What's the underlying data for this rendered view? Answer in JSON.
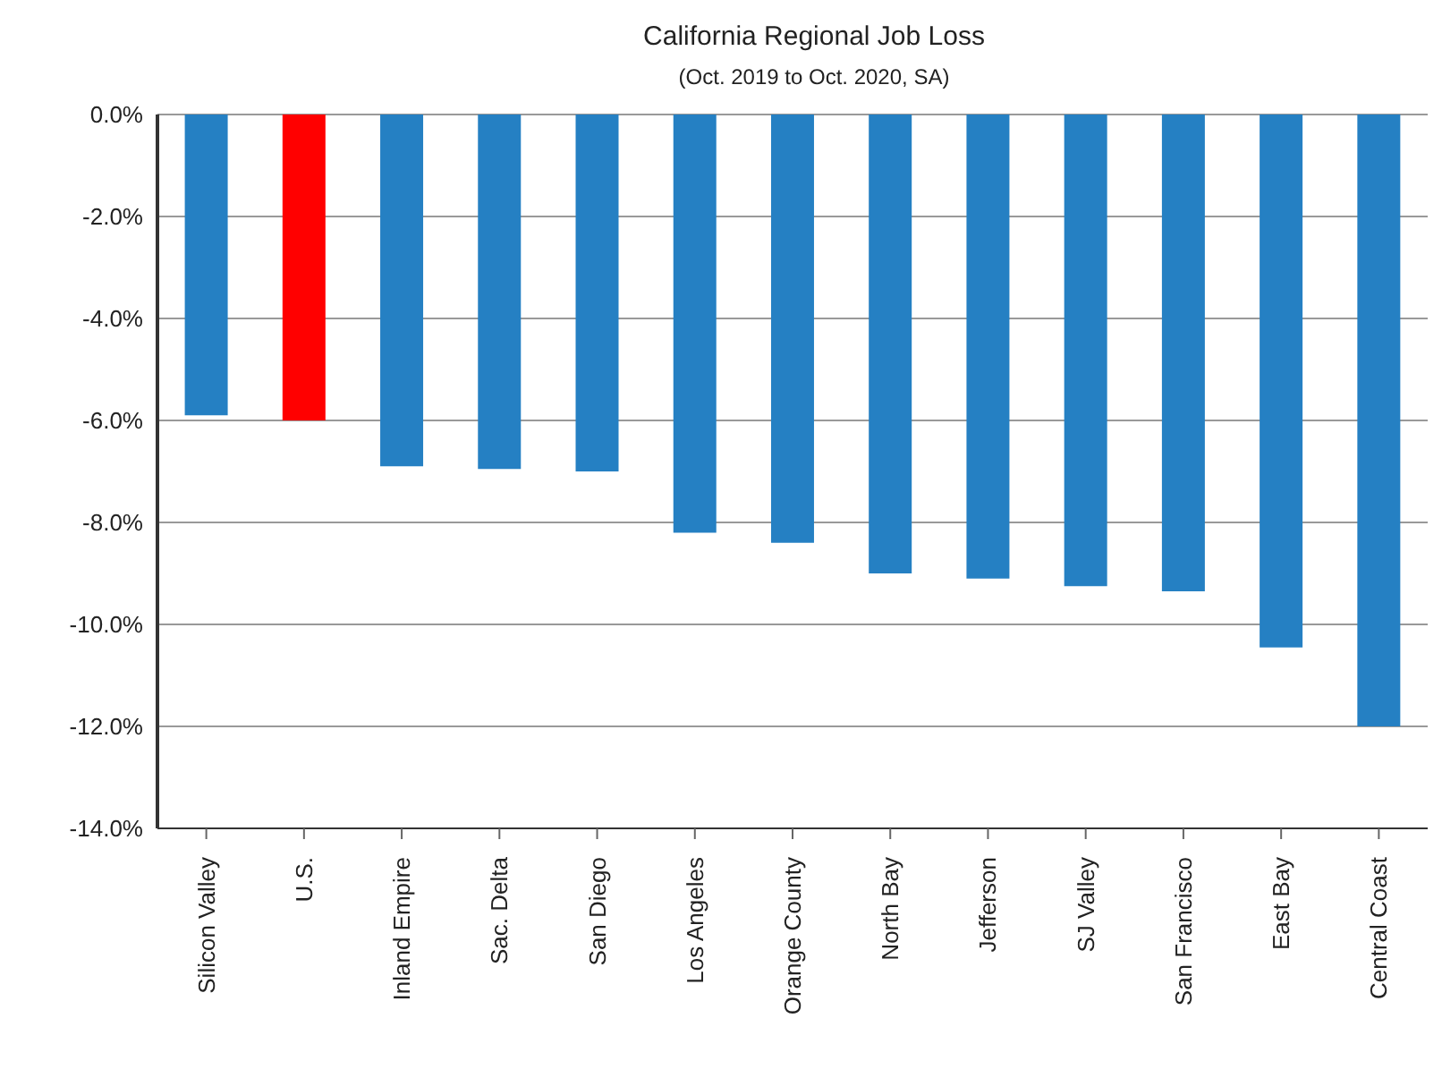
{
  "chart_data": {
    "type": "bar",
    "title": "California Regional Job Loss",
    "subtitle": "(Oct. 2019 to Oct. 2020, SA)",
    "categories": [
      "Silicon Valley",
      "U.S.",
      "Inland Empire",
      "Sac. Delta",
      "San Diego",
      "Los Angeles",
      "Orange County",
      "North Bay",
      "Jefferson",
      "SJ Valley",
      "San Francisco",
      "East Bay",
      "Central Coast"
    ],
    "values": [
      -5.9,
      -6.0,
      -6.9,
      -6.95,
      -7.0,
      -8.2,
      -8.4,
      -9.0,
      -9.1,
      -9.25,
      -9.35,
      -10.45,
      -12.0
    ],
    "colors": [
      "#2580c3",
      "#ff0000",
      "#2580c3",
      "#2580c3",
      "#2580c3",
      "#2580c3",
      "#2580c3",
      "#2580c3",
      "#2580c3",
      "#2580c3",
      "#2580c3",
      "#2580c3",
      "#2580c3"
    ],
    "ylim": [
      -14,
      0
    ],
    "yticks": [
      {
        "value": 0,
        "label": "0.0%"
      },
      {
        "value": -2,
        "label": "-2.0%"
      },
      {
        "value": -4,
        "label": "-4.0%"
      },
      {
        "value": -6,
        "label": "-6.0%"
      },
      {
        "value": -8,
        "label": "-8.0%"
      },
      {
        "value": -10,
        "label": "-10.0%"
      },
      {
        "value": -12,
        "label": "-12.0%"
      },
      {
        "value": -14,
        "label": "-14.0%"
      }
    ],
    "grid": "y"
  }
}
